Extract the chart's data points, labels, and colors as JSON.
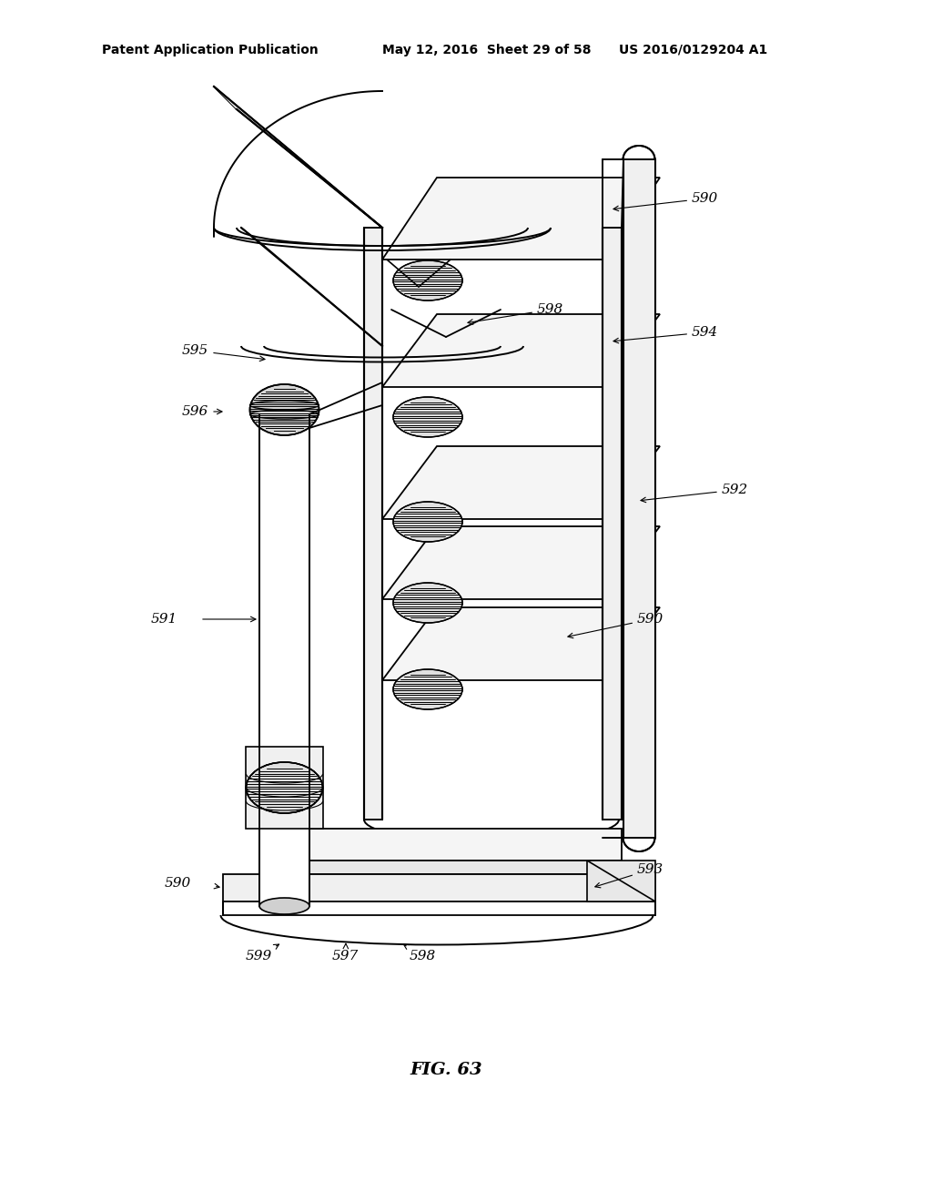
{
  "title": "FIG. 63",
  "header_left": "Patent Application Publication",
  "header_mid": "May 12, 2016  Sheet 29 of 58",
  "header_right": "US 2016/0129204 A1",
  "bg_color": "#ffffff",
  "line_color": "#000000",
  "label_fontsize": 11,
  "header_fontsize": 10,
  "title_fontsize": 14
}
